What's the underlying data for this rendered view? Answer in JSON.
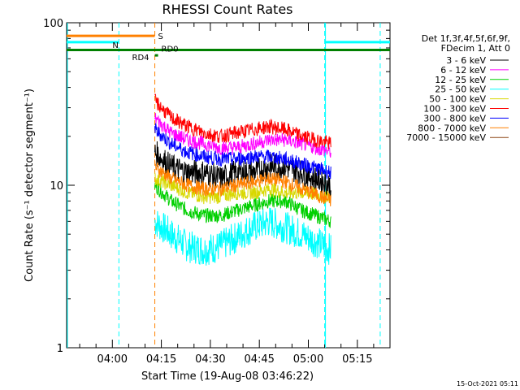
{
  "chart_data": {
    "type": "line",
    "title": "RHESSI Count Rates",
    "xlabel": "Start Time (19-Aug-08 03:46:22)",
    "ylabel": "Count Rate (s⁻¹ detector segment⁻¹)",
    "y_scale": "log",
    "ylim": [
      1,
      100
    ],
    "xlim": [
      "03:46",
      "05:25"
    ],
    "x_ticks": [
      "04:00",
      "04:15",
      "04:30",
      "04:45",
      "05:00",
      "05:15"
    ],
    "y_ticks": [
      "1",
      "10",
      "100"
    ],
    "legend_header": [
      "Det 1f,3f,4f,5f,6f,9f,",
      "FDecim 1, Att 0"
    ],
    "legend_position": "right",
    "footer_date": "15-Oct-2021 05:11",
    "data_window": [
      "04:13",
      "05:07"
    ],
    "series": [
      {
        "name": "3 - 6 keV",
        "color": "#000000",
        "values": [
          16,
          13,
          12,
          12,
          11,
          12,
          12,
          13,
          13,
          12,
          10
        ]
      },
      {
        "name": "6 - 12 keV",
        "color": "#ff00ff",
        "values": [
          26,
          21,
          19,
          18,
          17,
          17,
          18,
          19,
          19,
          18,
          16
        ]
      },
      {
        "name": "12 - 25 keV",
        "color": "#00d000",
        "values": [
          10,
          8,
          7,
          6.5,
          6.5,
          7,
          7.5,
          8,
          8,
          7,
          6
        ]
      },
      {
        "name": "25 - 50 keV",
        "color": "#00ffff",
        "values": [
          6,
          5,
          4.2,
          4,
          4.2,
          4.8,
          5.5,
          6,
          5.5,
          5,
          4
        ]
      },
      {
        "name": "50 - 100 keV",
        "color": "#d8d800",
        "values": [
          11,
          10,
          9,
          8.5,
          8.5,
          9,
          9,
          9.5,
          9,
          9,
          8.5
        ]
      },
      {
        "name": "100 - 300 keV",
        "color": "#ff0000",
        "values": [
          33,
          26,
          23,
          21,
          20,
          21,
          22,
          23,
          22,
          20,
          18
        ]
      },
      {
        "name": "300 - 800 keV",
        "color": "#0000ff",
        "values": [
          22,
          18,
          16,
          15,
          14.5,
          14.5,
          15,
          15,
          14.5,
          13.5,
          12
        ]
      },
      {
        "name": "800 - 7000 keV",
        "color": "#ff8000",
        "values": [
          13,
          11,
          10,
          9.5,
          9.5,
          10,
          10.5,
          11,
          10.5,
          9.5,
          8
        ]
      },
      {
        "name": "7000 - 15000 keV",
        "color": "#8b4513",
        "values": [
          null,
          null,
          null,
          null,
          null,
          null,
          null,
          null,
          null,
          null,
          null
        ]
      }
    ],
    "x": [
      "04:13",
      "04:18",
      "04:23",
      "04:28",
      "04:33",
      "04:38",
      "04:43",
      "04:48",
      "04:53",
      "04:58",
      "05:07"
    ],
    "state_bars": [
      {
        "label": "S",
        "color": "#ff8000",
        "from": "03:46",
        "to": "04:13",
        "level": 83
      },
      {
        "label": "N",
        "color": "#00ffff",
        "from": "03:46",
        "to": "04:02",
        "level": 76
      },
      {
        "label": "",
        "color": "#00ffff",
        "from": "05:05",
        "to": "05:25",
        "level": 76
      },
      {
        "label": "RD0",
        "color": "#008000",
        "from": "03:46",
        "to": "05:25",
        "level": 68
      },
      {
        "label": "RD4",
        "color": "#008000",
        "from": "04:13",
        "to": "04:13",
        "level": 63
      }
    ],
    "vlines": [
      {
        "time": "04:02",
        "color": "#00ffff"
      },
      {
        "time": "04:13",
        "color": "#ff8000"
      },
      {
        "time": "05:05",
        "color": "#00ffff"
      },
      {
        "time": "05:22",
        "color": "#00ffff"
      }
    ]
  }
}
